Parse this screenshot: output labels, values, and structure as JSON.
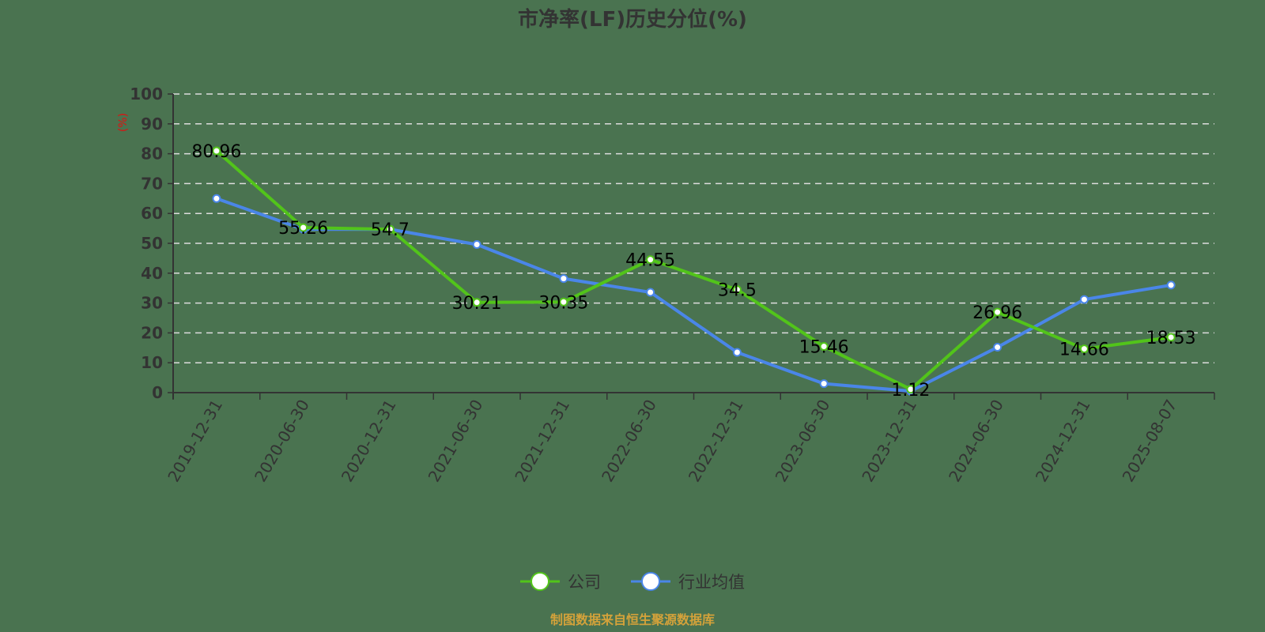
{
  "chart_data": {
    "type": "line",
    "title": "市净率(LF)历史分位(%)",
    "xlabel": "",
    "ylabel": "(%)",
    "ylim": [
      0,
      100
    ],
    "yticks": [
      0,
      10,
      20,
      30,
      40,
      50,
      60,
      70,
      80,
      90,
      100
    ],
    "grid": "horizontal dashed",
    "legend_position": "bottom",
    "categories": [
      "2019-12-31",
      "2020-06-30",
      "2020-12-31",
      "2021-06-30",
      "2021-12-31",
      "2022-06-30",
      "2022-12-31",
      "2023-06-30",
      "2023-12-31",
      "2024-06-30",
      "2024-12-31",
      "2025-08-07"
    ],
    "series": [
      {
        "name": "公司",
        "color": "#52c41a",
        "values": [
          80.96,
          55.26,
          54.7,
          30.21,
          30.35,
          44.55,
          34.5,
          15.46,
          1.12,
          26.96,
          14.66,
          18.53
        ],
        "labels_shown": true
      },
      {
        "name": "行业均值",
        "color": "#4a86e8",
        "values": [
          65.0,
          54.7,
          54.7,
          49.6,
          38.2,
          33.6,
          13.5,
          3.0,
          0.5,
          15.2,
          31.2,
          36.0
        ],
        "labels_shown": false
      }
    ]
  },
  "labels": {
    "title": "市净率(LF)历史分位(%)",
    "unit": "(%)",
    "source": "制图数据来自恒生聚源数据库",
    "legend": [
      "公司",
      "行业均值"
    ]
  }
}
